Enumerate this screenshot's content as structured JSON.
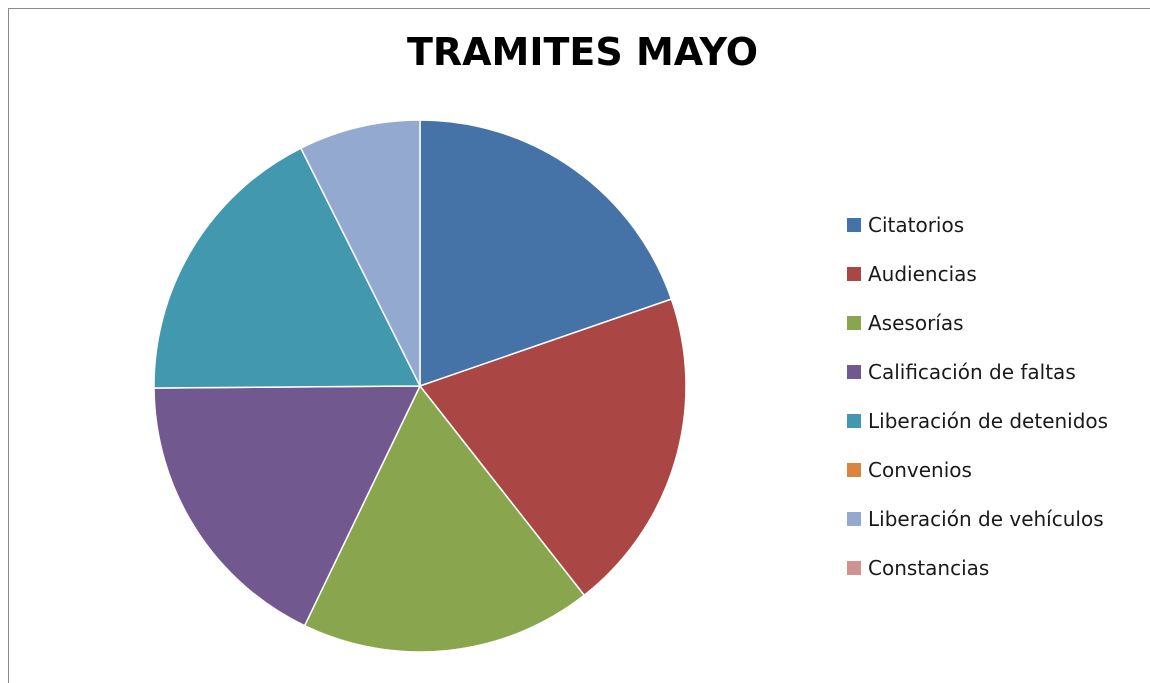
{
  "chart_data": {
    "type": "pie",
    "title": "TRAMITES MAYO",
    "categories": [
      "Citatorios",
      "Audiencias",
      "Asesorías",
      "Calificación de faltas",
      "Liberación de detenidos",
      "Convenios",
      "Liberación de vehículos",
      "Constancias"
    ],
    "values": [
      20,
      20,
      18,
      18,
      18,
      0,
      7.5,
      0
    ],
    "colors": [
      "#4572A7",
      "#AA4643",
      "#89A54E",
      "#71588F",
      "#4198AF",
      "#DB843D",
      "#93A9CF",
      "#D19392"
    ],
    "legend": "right"
  }
}
